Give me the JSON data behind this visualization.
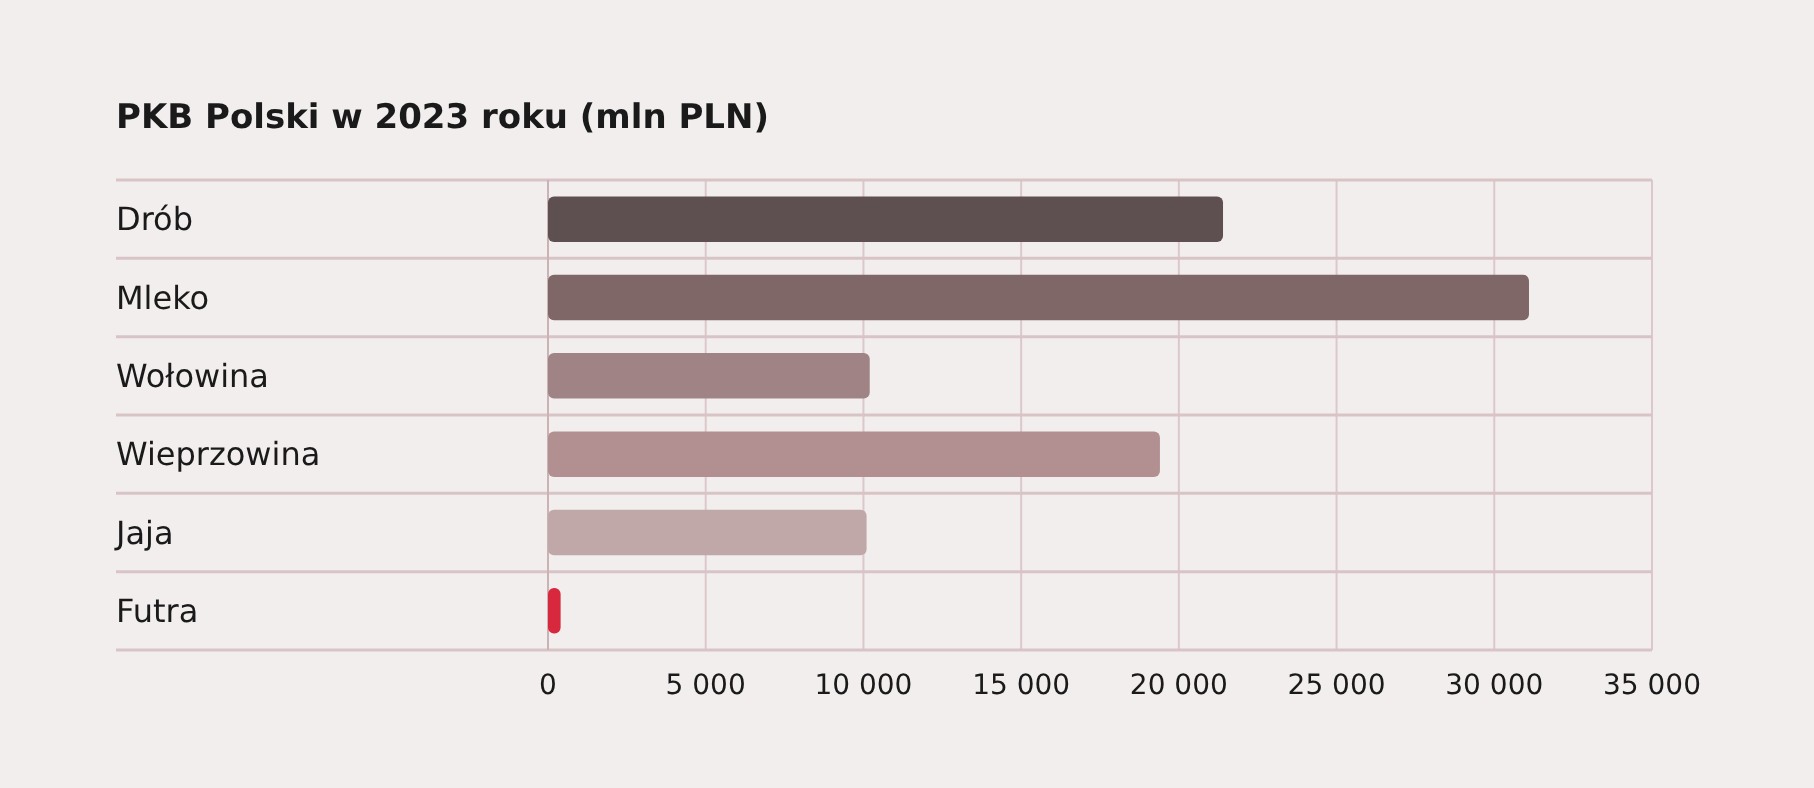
{
  "chart_data": {
    "type": "bar",
    "orientation": "horizontal",
    "title": "PKB Polski w 2023 roku (mln PLN)",
    "categories": [
      "Drób",
      "Mleko",
      "Wołowina",
      "Wieprzowina",
      "Jaja",
      "Futra"
    ],
    "values": [
      21400,
      31100,
      10200,
      19400,
      10100,
      400
    ],
    "colors": [
      "#5e4f50",
      "#7f6667",
      "#a08384",
      "#b29091",
      "#c0a7a8",
      "#d7283d"
    ],
    "xlim": [
      0,
      35000
    ],
    "xticks": [
      {
        "value": 0,
        "label": "0"
      },
      {
        "value": 5000,
        "label": "5 000"
      },
      {
        "value": 10000,
        "label": "10 000"
      },
      {
        "value": 15000,
        "label": "15 000"
      },
      {
        "value": 20000,
        "label": "20 000"
      },
      {
        "value": 25000,
        "label": "25 000"
      },
      {
        "value": 30000,
        "label": "30 000"
      },
      {
        "value": 35000,
        "label": "35 000"
      }
    ],
    "grid": true
  }
}
